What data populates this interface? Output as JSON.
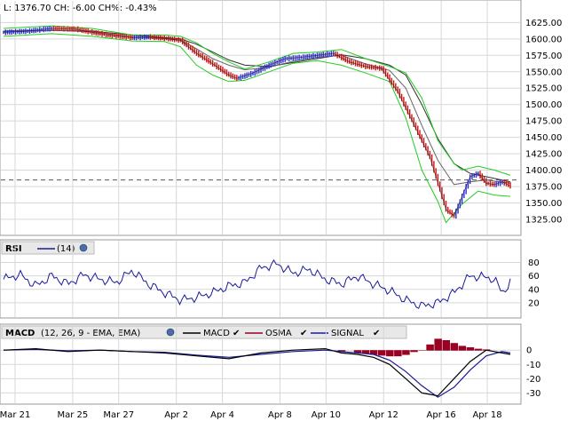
{
  "colors": {
    "price_up": "#2b2bd6",
    "price_down": "#cc1111",
    "price_mix": "#111111",
    "bollinger": "#22cc22",
    "ma_slow": "#333333",
    "ma_fast": "#666666",
    "rsi_line": "#1a1a99",
    "macd_line": "#000000",
    "signal_line": "#1a1a99",
    "osma_bar": "#990022",
    "grid": "#d7d7d7",
    "legend_bg": "#e8e8e8",
    "reference_line": "#555555"
  },
  "header": {
    "quote_text": "L: 1376.70 CH: -6.00 CH%: -0.43%"
  },
  "rsi_legend": {
    "title": "RSI",
    "param": "(14)",
    "settings_icon": "globe-icon"
  },
  "macd_legend": {
    "title": "MACD",
    "params": "(12, 26, 9 - EMA, EMA)",
    "macd_label": "MACD",
    "osma_label": "OSMA",
    "signal_label": "SIGNAL",
    "check_icon": "check-icon"
  },
  "chart_data": [
    {
      "type": "line",
      "panel": "price",
      "y_ticks": [
        "1625.00",
        "1600.00",
        "1575.00",
        "1550.00",
        "1525.00",
        "1500.00",
        "1475.00",
        "1450.00",
        "1425.00",
        "1400.00",
        "1375.00",
        "1350.00",
        "1325.00"
      ],
      "ylim": [
        1310,
        1635
      ],
      "reference_level": 1385,
      "price_path": [
        [
          0,
          1610
        ],
        [
          3,
          1612
        ],
        [
          6,
          1616
        ],
        [
          9,
          1615
        ],
        [
          11,
          1610
        ],
        [
          13,
          1606
        ],
        [
          16,
          1602
        ],
        [
          18,
          1603
        ],
        [
          20,
          1601
        ],
        [
          22,
          1598
        ],
        [
          24,
          1578
        ],
        [
          26,
          1562
        ],
        [
          28,
          1545
        ],
        [
          29,
          1540
        ],
        [
          31,
          1548
        ],
        [
          33,
          1560
        ],
        [
          35,
          1570
        ],
        [
          37,
          1572
        ],
        [
          39,
          1575
        ],
        [
          41,
          1578
        ],
        [
          43,
          1565
        ],
        [
          45,
          1558
        ],
        [
          47,
          1555
        ],
        [
          49,
          1520
        ],
        [
          51,
          1470
        ],
        [
          53,
          1420
        ],
        [
          54,
          1380
        ],
        [
          55,
          1340
        ],
        [
          56,
          1330
        ],
        [
          57,
          1360
        ],
        [
          58,
          1390
        ],
        [
          59,
          1395
        ],
        [
          60,
          1380
        ],
        [
          61,
          1378
        ],
        [
          62,
          1382
        ],
        [
          63,
          1376
        ]
      ],
      "boll_upper": [
        [
          0,
          1616
        ],
        [
          6,
          1620
        ],
        [
          11,
          1616
        ],
        [
          16,
          1606
        ],
        [
          20,
          1606
        ],
        [
          22,
          1604
        ],
        [
          24,
          1594
        ],
        [
          26,
          1578
        ],
        [
          28,
          1565
        ],
        [
          30,
          1554
        ],
        [
          33,
          1565
        ],
        [
          36,
          1578
        ],
        [
          39,
          1580
        ],
        [
          42,
          1584
        ],
        [
          45,
          1570
        ],
        [
          48,
          1558
        ],
        [
          50,
          1548
        ],
        [
          52,
          1510
        ],
        [
          54,
          1445
        ],
        [
          56,
          1410
        ],
        [
          57,
          1400
        ],
        [
          59,
          1406
        ],
        [
          61,
          1400
        ],
        [
          63,
          1392
        ]
      ],
      "boll_lower": [
        [
          0,
          1604
        ],
        [
          6,
          1608
        ],
        [
          11,
          1604
        ],
        [
          16,
          1597
        ],
        [
          20,
          1596
        ],
        [
          22,
          1588
        ],
        [
          24,
          1560
        ],
        [
          26,
          1545
        ],
        [
          28,
          1535
        ],
        [
          30,
          1537
        ],
        [
          33,
          1550
        ],
        [
          36,
          1563
        ],
        [
          39,
          1567
        ],
        [
          42,
          1560
        ],
        [
          45,
          1548
        ],
        [
          48,
          1535
        ],
        [
          50,
          1480
        ],
        [
          52,
          1400
        ],
        [
          54,
          1352
        ],
        [
          55,
          1320
        ],
        [
          57,
          1348
        ],
        [
          59,
          1368
        ],
        [
          61,
          1362
        ],
        [
          63,
          1360
        ]
      ],
      "ma_fast": [
        [
          0,
          1611
        ],
        [
          6,
          1613
        ],
        [
          11,
          1611
        ],
        [
          16,
          1603
        ],
        [
          20,
          1600
        ],
        [
          22,
          1598
        ],
        [
          24,
          1585
        ],
        [
          26,
          1570
        ],
        [
          28,
          1560
        ],
        [
          30,
          1553
        ],
        [
          33,
          1557
        ],
        [
          36,
          1566
        ],
        [
          39,
          1572
        ],
        [
          42,
          1575
        ],
        [
          45,
          1562
        ],
        [
          48,
          1552
        ],
        [
          50,
          1525
        ],
        [
          52,
          1468
        ],
        [
          54,
          1415
        ],
        [
          56,
          1378
        ],
        [
          58,
          1382
        ],
        [
          60,
          1385
        ],
        [
          63,
          1380
        ]
      ],
      "ma_slow": [
        [
          0,
          1612
        ],
        [
          6,
          1613
        ],
        [
          11,
          1612
        ],
        [
          16,
          1606
        ],
        [
          20,
          1602
        ],
        [
          22,
          1600
        ],
        [
          24,
          1592
        ],
        [
          26,
          1580
        ],
        [
          28,
          1568
        ],
        [
          30,
          1560
        ],
        [
          33,
          1558
        ],
        [
          36,
          1564
        ],
        [
          39,
          1570
        ],
        [
          42,
          1576
        ],
        [
          45,
          1570
        ],
        [
          48,
          1560
        ],
        [
          50,
          1545
        ],
        [
          52,
          1500
        ],
        [
          54,
          1448
        ],
        [
          56,
          1410
        ],
        [
          58,
          1395
        ],
        [
          60,
          1390
        ],
        [
          63,
          1382
        ]
      ]
    },
    {
      "type": "line",
      "panel": "rsi",
      "y_ticks": [
        "80",
        "60",
        "40",
        "20"
      ],
      "ylim": [
        0,
        90
      ],
      "rsi": [
        [
          0,
          55
        ],
        [
          2,
          62
        ],
        [
          4,
          45
        ],
        [
          6,
          60
        ],
        [
          8,
          48
        ],
        [
          10,
          62
        ],
        [
          12,
          55
        ],
        [
          14,
          50
        ],
        [
          16,
          68
        ],
        [
          18,
          48
        ],
        [
          20,
          35
        ],
        [
          22,
          24
        ],
        [
          24,
          28
        ],
        [
          26,
          35
        ],
        [
          28,
          45
        ],
        [
          30,
          50
        ],
        [
          32,
          72
        ],
        [
          34,
          78
        ],
        [
          36,
          64
        ],
        [
          38,
          70
        ],
        [
          40,
          55
        ],
        [
          42,
          48
        ],
        [
          44,
          60
        ],
        [
          46,
          48
        ],
        [
          48,
          38
        ],
        [
          50,
          24
        ],
        [
          52,
          15
        ],
        [
          54,
          20
        ],
        [
          56,
          35
        ],
        [
          58,
          60
        ],
        [
          60,
          58
        ],
        [
          61,
          55
        ],
        [
          62,
          35
        ],
        [
          63,
          50
        ]
      ]
    },
    {
      "type": "line",
      "panel": "macd",
      "y_ticks": [
        "0",
        "-10",
        "-20",
        "-30"
      ],
      "ylim": [
        -36,
        7
      ],
      "macd": [
        [
          0,
          0
        ],
        [
          4,
          1
        ],
        [
          8,
          -1
        ],
        [
          12,
          0
        ],
        [
          16,
          -1
        ],
        [
          20,
          -2
        ],
        [
          24,
          -4
        ],
        [
          28,
          -6
        ],
        [
          32,
          -2
        ],
        [
          36,
          0
        ],
        [
          40,
          1
        ],
        [
          42,
          -2
        ],
        [
          44,
          -3
        ],
        [
          46,
          -5
        ],
        [
          48,
          -10
        ],
        [
          50,
          -20
        ],
        [
          52,
          -30
        ],
        [
          54,
          -32
        ],
        [
          56,
          -20
        ],
        [
          58,
          -8
        ],
        [
          60,
          0
        ],
        [
          62,
          -2
        ],
        [
          63,
          -3
        ]
      ],
      "signal": [
        [
          0,
          0
        ],
        [
          4,
          0.5
        ],
        [
          8,
          -0.5
        ],
        [
          12,
          0
        ],
        [
          16,
          -1
        ],
        [
          20,
          -1.5
        ],
        [
          24,
          -3.5
        ],
        [
          28,
          -5
        ],
        [
          32,
          -3
        ],
        [
          36,
          -1
        ],
        [
          40,
          0
        ],
        [
          42,
          -1
        ],
        [
          44,
          -2
        ],
        [
          46,
          -3
        ],
        [
          48,
          -7
        ],
        [
          50,
          -15
        ],
        [
          52,
          -25
        ],
        [
          54,
          -33
        ],
        [
          56,
          -26
        ],
        [
          58,
          -14
        ],
        [
          60,
          -4
        ],
        [
          62,
          -1
        ],
        [
          63,
          -2
        ]
      ],
      "osma": [
        [
          42,
          -1
        ],
        [
          44,
          -1.5
        ],
        [
          45,
          -2
        ],
        [
          46,
          -3
        ],
        [
          47,
          -3.5
        ],
        [
          48,
          -4
        ],
        [
          49,
          -4
        ],
        [
          50,
          -3
        ],
        [
          51,
          -1
        ],
        [
          52,
          0
        ],
        [
          53,
          4
        ],
        [
          54,
          8
        ],
        [
          55,
          7
        ],
        [
          56,
          5
        ],
        [
          57,
          3
        ],
        [
          58,
          2
        ],
        [
          59,
          1
        ],
        [
          60,
          0.5
        ]
      ]
    }
  ],
  "x_axis": {
    "labels": [
      "Mar 21",
      "Mar 25",
      "Mar 27",
      "Apr 2",
      "Apr 4",
      "Apr 8",
      "Apr 10",
      "Apr 12",
      "Apr 16",
      "Apr 18"
    ],
    "positions": [
      1,
      6,
      10,
      15,
      19,
      24,
      28,
      33,
      38,
      42
    ]
  }
}
